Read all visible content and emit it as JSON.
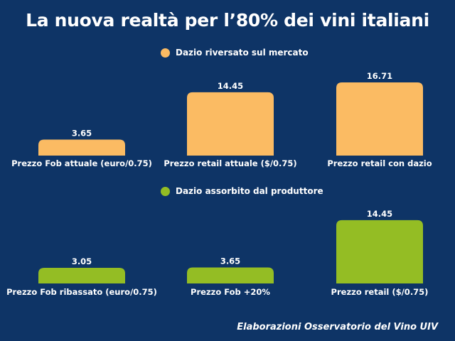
{
  "title": "La nuova realtà per l’80% dei vini italiani",
  "source": "Elaborazioni Osservatorio del Vino UIV",
  "colors": {
    "background": "#0e3466",
    "orange": "#fbbb63",
    "green": "#94bd24",
    "text": "#ffffff"
  },
  "chart_data": [
    {
      "type": "bar",
      "legend": "Dazio riversato sul mercato",
      "color": "#fbbb63",
      "categories": [
        "Prezzo Fob attuale (euro/0.75)",
        "Prezzo retail attuale ($/0.75)",
        "Prezzo retail con dazio"
      ],
      "values": [
        3.65,
        14.45,
        16.71
      ],
      "data_labels": [
        "3.65",
        "14.45",
        "16.71"
      ],
      "grid": false,
      "legend_position": "top-center"
    },
    {
      "type": "bar",
      "legend": "Dazio assorbito dal produttore",
      "color": "#94bd24",
      "categories": [
        "Prezzo Fob ribassato (euro/0.75)",
        "Prezzo Fob +20%",
        "Prezzo retail ($/0.75)"
      ],
      "values": [
        3.05,
        3.65,
        14.45
      ],
      "data_labels": [
        "3.05",
        "3.65",
        "14.45"
      ],
      "grid": false,
      "legend_position": "top-center"
    }
  ]
}
